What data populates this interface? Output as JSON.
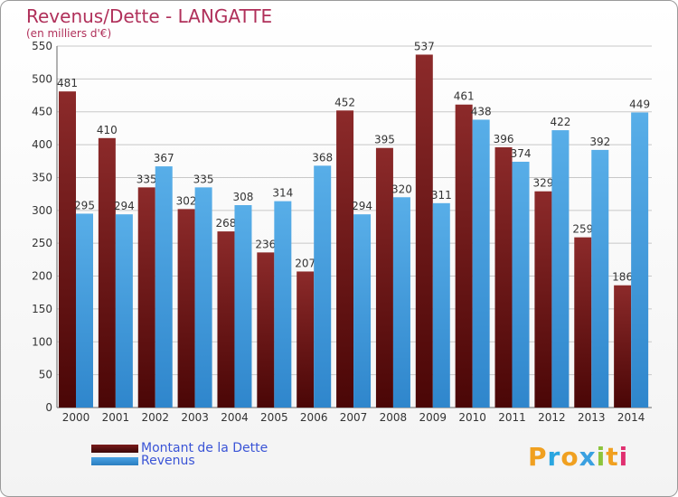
{
  "title": "Revenus/Dette - LANGATTE",
  "subtitle": "(en milliers d'€)",
  "colors": {
    "dette": "#7a1a1a",
    "revenus": "#4aa3e4",
    "grid": "#c8c8c8",
    "axis_text": "#333333"
  },
  "chart_data": {
    "type": "bar",
    "title": "Revenus/Dette - LANGATTE",
    "ylabel": "(en milliers d'€)",
    "xlabel": "",
    "ylim": [
      0,
      550
    ],
    "yticks": [
      0,
      50,
      100,
      150,
      200,
      250,
      300,
      350,
      400,
      450,
      500,
      550
    ],
    "grid": true,
    "legend_position": "bottom-left",
    "categories": [
      "2000",
      "2001",
      "2002",
      "2003",
      "2004",
      "2005",
      "2006",
      "2007",
      "2008",
      "2009",
      "2010",
      "2011",
      "2012",
      "2013",
      "2014"
    ],
    "series": [
      {
        "name": "Montant de la Dette",
        "color": "#7a1a1a",
        "values": [
          481,
          410,
          335,
          302,
          268,
          236,
          207,
          452,
          395,
          537,
          461,
          396,
          329,
          259,
          186
        ]
      },
      {
        "name": "Revenus",
        "color": "#4aa3e4",
        "values": [
          295,
          294,
          367,
          335,
          308,
          314,
          368,
          294,
          320,
          311,
          438,
          374,
          422,
          392,
          449
        ]
      }
    ]
  },
  "legend": [
    {
      "label": "Montant de la Dette",
      "color": "#7a1a1a"
    },
    {
      "label": "Revenus",
      "color": "#4aa3e4"
    }
  ],
  "logo": {
    "letters": [
      "P",
      "r",
      "o",
      "x",
      "i",
      "t",
      "i"
    ],
    "colors": [
      "#f0a020",
      "#2aa6e0",
      "#f0a020",
      "#3aa0e0",
      "#8cc43c",
      "#f0a020",
      "#e03070"
    ]
  }
}
